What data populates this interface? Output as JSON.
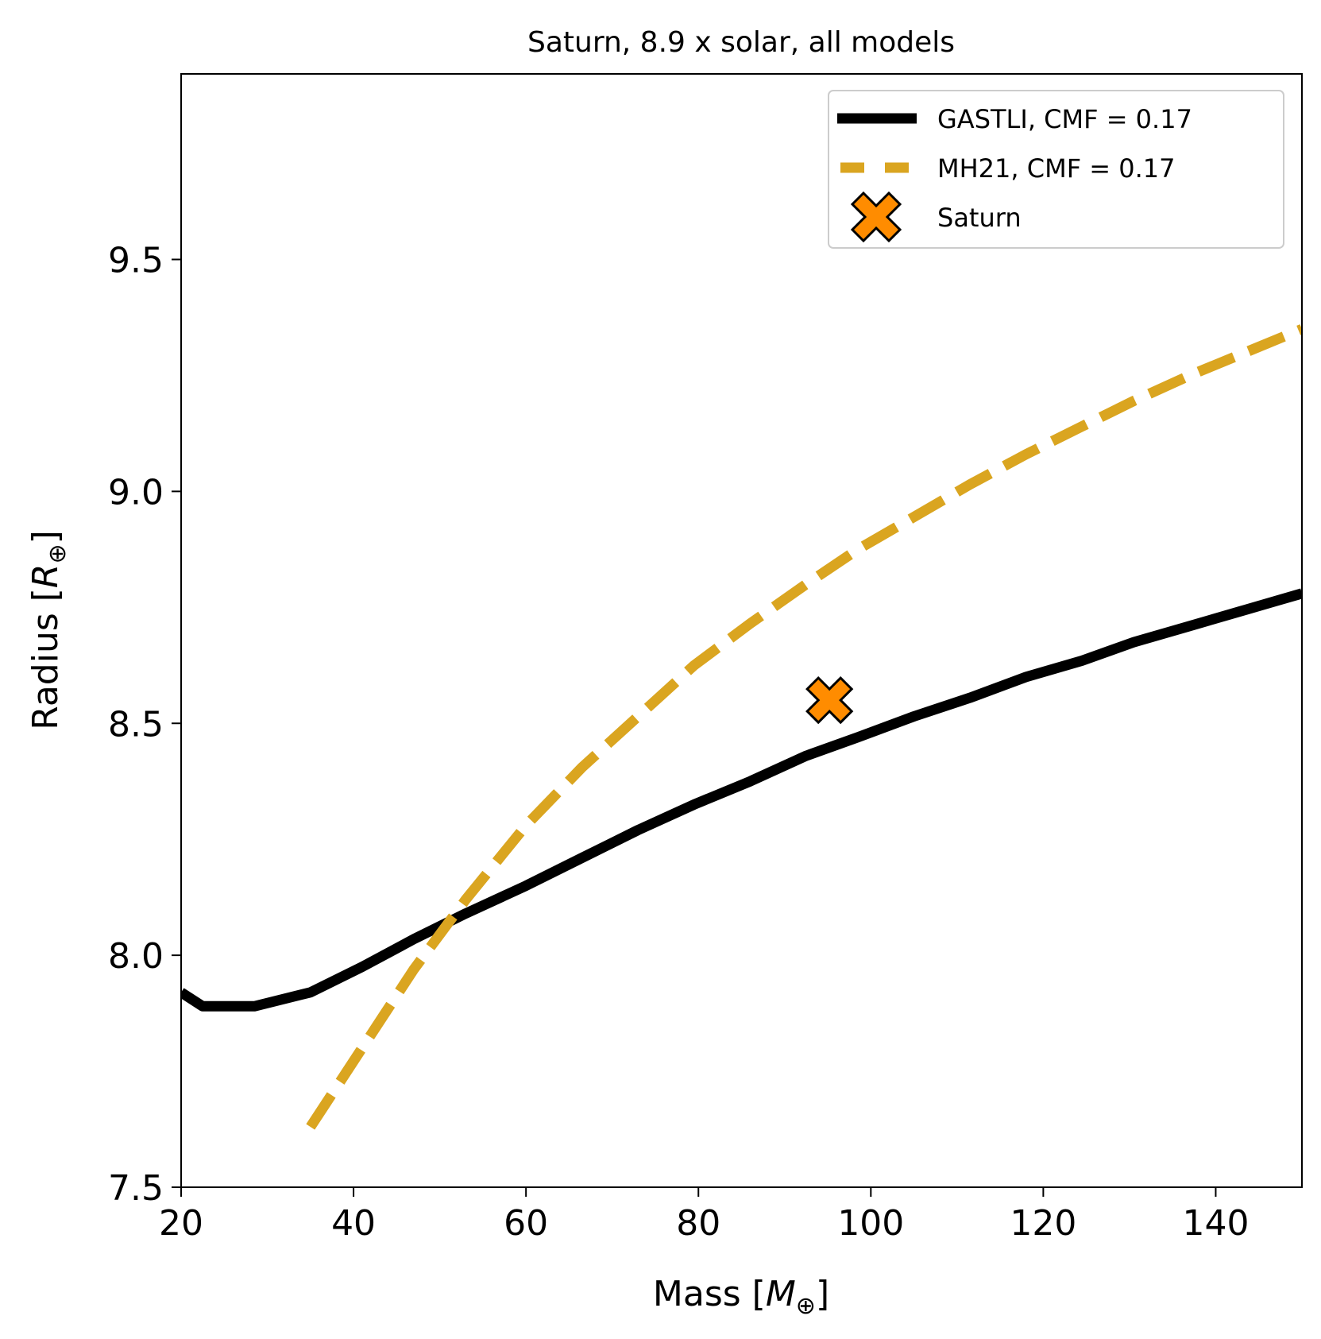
{
  "chart_data": {
    "type": "line",
    "title": "Saturn, 8.9 x solar, all models",
    "xlabel": {
      "text": "Mass [",
      "symbol": "M",
      "subscript": "⊕",
      "close": "]"
    },
    "ylabel": {
      "text": "Radius [",
      "symbol": "R",
      "subscript": "⊕",
      "close": "]"
    },
    "xlim": [
      20,
      150
    ],
    "ylim": [
      7.5,
      9.9
    ],
    "xticks": [
      20,
      40,
      60,
      80,
      100,
      120,
      140
    ],
    "xtick_labels": [
      "20",
      "40",
      "60",
      "80",
      "100",
      "120",
      "140"
    ],
    "yticks": [
      7.5,
      8.0,
      8.5,
      9.0,
      9.5
    ],
    "ytick_labels": [
      "7.5",
      "8.0",
      "8.5",
      "9.0",
      "9.5"
    ],
    "grid": false,
    "legend_position": "top-right",
    "series": [
      {
        "name": "GASTLI, CMF = 0.17",
        "style": "solid",
        "color": "#000000",
        "x": [
          20,
          22.5,
          25,
          28.5,
          35,
          41,
          47,
          53,
          60,
          66.5,
          73,
          79.5,
          86,
          92.5,
          98.5,
          105,
          111.5,
          118,
          124.5,
          130.5,
          137,
          143.5,
          150
        ],
        "y": [
          7.92,
          7.89,
          7.89,
          7.89,
          7.92,
          7.975,
          8.035,
          8.09,
          8.15,
          8.21,
          8.27,
          8.325,
          8.375,
          8.43,
          8.47,
          8.515,
          8.555,
          8.6,
          8.635,
          8.675,
          8.71,
          8.745,
          8.78
        ]
      },
      {
        "name": "MH21, CMF = 0.17",
        "style": "dashed",
        "color": "#DAA520",
        "x": [
          35,
          41,
          47,
          53,
          60,
          66.5,
          73,
          79.5,
          86,
          92.5,
          98.5,
          105,
          111.5,
          118,
          124.5,
          130.5,
          137,
          143.5,
          150
        ],
        "y": [
          7.63,
          7.8,
          7.97,
          8.12,
          8.28,
          8.405,
          8.515,
          8.625,
          8.715,
          8.8,
          8.875,
          8.945,
          9.015,
          9.08,
          9.14,
          9.195,
          9.25,
          9.3,
          9.35
        ]
      }
    ],
    "points": [
      {
        "name": "Saturn",
        "x": 95.2,
        "y": 8.55,
        "marker": "X",
        "color": "#FF8C00",
        "edge_color": "#000000"
      }
    ]
  }
}
